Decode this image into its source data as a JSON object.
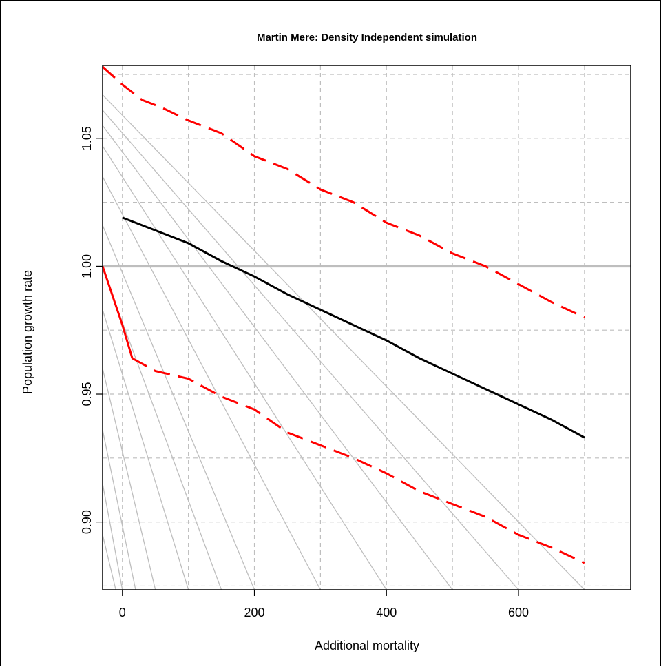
{
  "colors": {
    "grid": "#bebebe",
    "contours": "#bebebe",
    "reference_line": "#bebebe",
    "median": "#000000",
    "bounds": "#ff0000"
  },
  "chart_data": {
    "type": "line",
    "title": "Martin Mere: Density Independent simulation",
    "xlabel": "Additional mortality",
    "ylabel": "Population growth rate",
    "xlim": [
      -30,
      770
    ],
    "ylim": [
      0.8735,
      1.0785
    ],
    "x_ticks": [
      0,
      200,
      400,
      600
    ],
    "x_tick_labels": [
      "0",
      "200",
      "400",
      "600"
    ],
    "y_ticks": [
      0.9,
      0.95,
      1.0,
      1.05
    ],
    "y_tick_labels": [
      "0.90",
      "0.95",
      "1.00",
      "1.05"
    ],
    "grid": true,
    "grid_style": "dashed",
    "grid_x": [
      0,
      100,
      200,
      300,
      400,
      500,
      600,
      700
    ],
    "grid_y": [
      0.875,
      0.9,
      0.925,
      0.95,
      0.975,
      1.0,
      1.025,
      1.05,
      1.075
    ],
    "reference_line": {
      "y": 1.0
    },
    "contour_lines": [
      {
        "x0": -30,
        "y0": 1.067,
        "x1": 700,
        "y1": 0.8735
      },
      {
        "x0": -30,
        "y0": 1.061,
        "x1": 600,
        "y1": 0.8735
      },
      {
        "x0": -30,
        "y0": 1.055,
        "x1": 500,
        "y1": 0.8735
      },
      {
        "x0": -30,
        "y0": 1.047,
        "x1": 400,
        "y1": 0.8735
      },
      {
        "x0": -30,
        "y0": 1.035,
        "x1": 300,
        "y1": 0.8735
      },
      {
        "x0": -30,
        "y0": 1.016,
        "x1": 200,
        "y1": 0.8735
      },
      {
        "x0": -30,
        "y0": 0.999,
        "x1": 150,
        "y1": 0.8735
      },
      {
        "x0": -30,
        "y0": 0.983,
        "x1": 100,
        "y1": 0.8735
      },
      {
        "x0": -30,
        "y0": 0.96,
        "x1": 50,
        "y1": 0.8735
      },
      {
        "x0": -30,
        "y0": 0.936,
        "x1": 20,
        "y1": 0.8735
      },
      {
        "x0": -30,
        "y0": 0.915,
        "x1": 0,
        "y1": 0.8735
      },
      {
        "x0": -30,
        "y0": 0.895,
        "x1": -10,
        "y1": 0.8735
      }
    ],
    "series": [
      {
        "role": "median",
        "style": "solid",
        "x": [
          0,
          50,
          100,
          150,
          200,
          250,
          300,
          350,
          400,
          450,
          500,
          550,
          600,
          650,
          700
        ],
        "y": [
          1.019,
          1.014,
          1.009,
          1.002,
          0.996,
          0.989,
          0.983,
          0.977,
          0.971,
          0.964,
          0.958,
          0.952,
          0.946,
          0.94,
          0.933
        ]
      },
      {
        "role": "upper",
        "style": "dashed",
        "x": [
          -30,
          0,
          30,
          60,
          100,
          150,
          200,
          250,
          300,
          350,
          400,
          450,
          500,
          550,
          600,
          650,
          700
        ],
        "y": [
          1.078,
          1.071,
          1.065,
          1.062,
          1.057,
          1.052,
          1.043,
          1.038,
          1.03,
          1.025,
          1.017,
          1.012,
          1.005,
          1.0,
          0.993,
          0.986,
          0.98
        ]
      },
      {
        "role": "lower",
        "style": "mixed",
        "x": [
          -30,
          0,
          15,
          50,
          100,
          150,
          200,
          250,
          300,
          350,
          400,
          450,
          500,
          550,
          600,
          650,
          700
        ],
        "y": [
          1.0,
          0.977,
          0.964,
          0.959,
          0.956,
          0.949,
          0.944,
          0.935,
          0.93,
          0.925,
          0.919,
          0.912,
          0.907,
          0.902,
          0.895,
          0.89,
          0.884
        ]
      }
    ]
  }
}
